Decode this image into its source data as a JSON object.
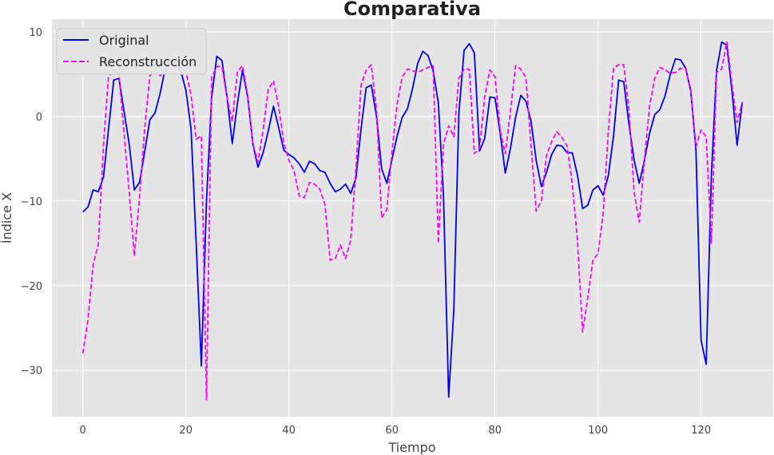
{
  "chart_data": {
    "type": "line",
    "title": "Comparativa",
    "xlabel": "Tiempo",
    "ylabel": "Índice X",
    "xlim": [
      -6,
      134
    ],
    "ylim": [
      -35.5,
      11.5
    ],
    "xticks": [
      0,
      20,
      40,
      60,
      80,
      100,
      120
    ],
    "yticks": [
      10,
      0,
      -10,
      -20,
      -30
    ],
    "ytick_labels": [
      "10",
      "0",
      "−10",
      "−20",
      "−30"
    ],
    "grid": true,
    "legend_position": "top-left",
    "x": [
      0,
      1,
      2,
      3,
      4,
      5,
      6,
      7,
      8,
      9,
      10,
      11,
      12,
      13,
      14,
      15,
      16,
      17,
      18,
      19,
      20,
      21,
      22,
      23,
      24,
      25,
      26,
      27,
      28,
      29,
      30,
      31,
      32,
      33,
      34,
      35,
      36,
      37,
      38,
      39,
      40,
      41,
      42,
      43,
      44,
      45,
      46,
      47,
      48,
      49,
      50,
      51,
      52,
      53,
      54,
      55,
      56,
      57,
      58,
      59,
      60,
      61,
      62,
      63,
      64,
      65,
      66,
      67,
      68,
      69,
      70,
      71,
      72,
      73,
      74,
      75,
      76,
      77,
      78,
      79,
      80,
      81,
      82,
      83,
      84,
      85,
      86,
      87,
      88,
      89,
      90,
      91,
      92,
      93,
      94,
      95,
      96,
      97,
      98,
      99,
      100,
      101,
      102,
      103,
      104,
      105,
      106,
      107,
      108,
      109,
      110,
      111,
      112,
      113,
      114,
      115,
      116,
      117,
      118,
      119,
      120,
      121,
      122,
      123,
      124,
      125,
      126,
      127,
      128
    ],
    "series": [
      {
        "name": "Original",
        "color": "#0000ee",
        "style": "solid",
        "values": [
          -11.3,
          -10.7,
          -8.7,
          -8.9,
          -7.2,
          -1.5,
          4.3,
          4.5,
          0.6,
          -3.3,
          -8.7,
          -7.8,
          -4.2,
          -0.4,
          0.4,
          2.7,
          5.7,
          6.5,
          6.4,
          5.4,
          3.1,
          -1.5,
          -15.0,
          -29.5,
          -10.0,
          2.2,
          7.1,
          6.6,
          2.2,
          -3.2,
          1.5,
          5.5,
          2.3,
          -3.3,
          -6.0,
          -4.3,
          -1.7,
          1.2,
          -1.3,
          -4.0,
          -4.5,
          -4.9,
          -5.6,
          -6.6,
          -5.3,
          -5.6,
          -6.4,
          -6.6,
          -7.9,
          -8.9,
          -8.6,
          -8.0,
          -9.1,
          -7.3,
          -1.5,
          3.4,
          3.7,
          0.0,
          -6.2,
          -7.9,
          -5.1,
          -2.3,
          -0.1,
          0.9,
          3.3,
          6.3,
          7.7,
          7.2,
          5.4,
          1.6,
          -9.3,
          -33.2,
          -23.0,
          0.4,
          7.8,
          8.6,
          7.5,
          -4.1,
          -2.6,
          2.3,
          2.2,
          -1.9,
          -6.7,
          -3.8,
          -0.1,
          2.5,
          1.8,
          -0.6,
          -5.2,
          -8.3,
          -6.6,
          -4.5,
          -3.4,
          -3.5,
          -4.3,
          -4.3,
          -6.9,
          -10.9,
          -10.5,
          -8.7,
          -8.2,
          -9.3,
          -7.0,
          -2.4,
          4.3,
          4.1,
          -0.9,
          -5.2,
          -7.9,
          -5.2,
          -2.0,
          0.2,
          0.8,
          2.4,
          4.9,
          6.8,
          6.7,
          5.7,
          3.0,
          -4.0,
          -26.5,
          -29.3,
          -7.0,
          5.4,
          8.8,
          8.4,
          3.0,
          -3.4,
          1.7
        ]
      },
      {
        "name": "Reconstrucción",
        "color": "#ff00ff",
        "style": "dashed",
        "values": [
          -28.0,
          -24.0,
          -17.5,
          -15.2,
          -3.5,
          4.8,
          5.3,
          5.0,
          -2.0,
          -9.0,
          -16.5,
          -9.5,
          -1.5,
          4.8,
          5.4,
          4.8,
          5.4,
          5.4,
          5.3,
          5.8,
          5.3,
          2.5,
          -2.7,
          -2.3,
          -33.5,
          4.6,
          5.9,
          5.9,
          2.2,
          -0.6,
          5.3,
          6.0,
          2.5,
          -3.3,
          -5.4,
          -1.6,
          3.2,
          4.2,
          1.2,
          -3.1,
          -5.2,
          -6.4,
          -9.4,
          -9.6,
          -7.8,
          -8.0,
          -8.6,
          -10.4,
          -17.0,
          -16.8,
          -15.2,
          -16.8,
          -14.6,
          -6.2,
          3.7,
          5.5,
          6.1,
          0.8,
          -12.0,
          -11.0,
          -4.2,
          1.5,
          4.7,
          5.6,
          5.4,
          5.2,
          5.5,
          5.8,
          6.0,
          -15.0,
          -3.3,
          -1.1,
          -2.4,
          4.5,
          5.6,
          5.6,
          -4.4,
          -3.7,
          2.3,
          5.5,
          4.7,
          -1.6,
          -4.4,
          0.6,
          6.0,
          5.6,
          4.6,
          -3.5,
          -11.2,
          -10.0,
          -4.6,
          -3.0,
          -1.8,
          -2.5,
          -3.5,
          -8.0,
          -14.6,
          -25.5,
          -21.5,
          -17.0,
          -16.2,
          -11.5,
          -1.7,
          5.7,
          6.1,
          6.1,
          0.8,
          -9.0,
          -12.5,
          -5.1,
          1.2,
          4.5,
          5.8,
          5.5,
          5.1,
          5.2,
          5.7,
          5.6,
          3.2,
          -3.6,
          -1.6,
          -2.4,
          -15.0,
          5.2,
          5.6,
          8.8,
          3.8,
          -0.7,
          1.7
        ]
      }
    ]
  }
}
